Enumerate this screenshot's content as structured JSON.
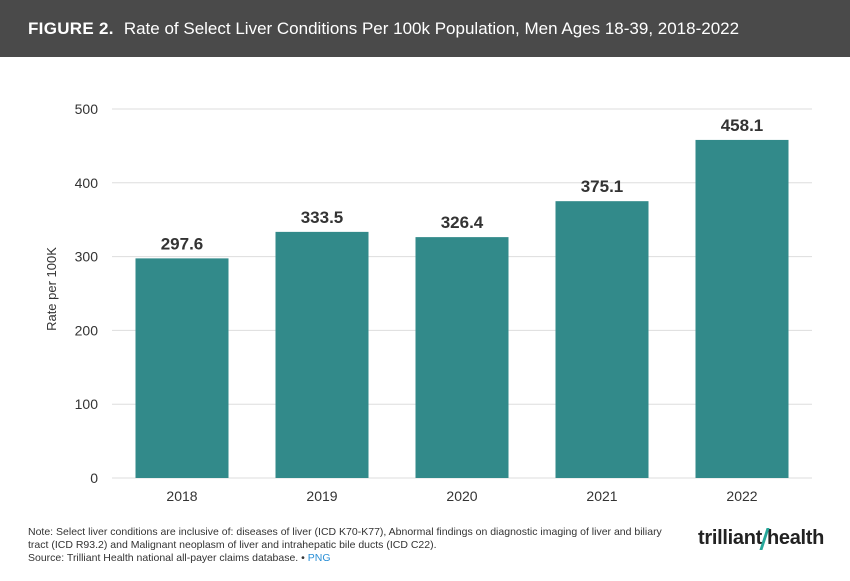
{
  "header": {
    "figure_label": "FIGURE 2.",
    "title": "Rate of Select Liver Conditions Per 100k Population, Men Ages 18-39, 2018-2022"
  },
  "chart_data": {
    "type": "bar",
    "title": "Rate of Select Liver Conditions Per 100k Population, Men Ages 18-39, 2018-2022",
    "categories": [
      "2018",
      "2019",
      "2020",
      "2021",
      "2022"
    ],
    "values": [
      297.6,
      333.5,
      326.4,
      375.1,
      458.1
    ],
    "data_labels": [
      "297.6",
      "333.5",
      "326.4",
      "375.1",
      "458.1"
    ],
    "xlabel": "",
    "ylabel": "Rate per 100K",
    "ylim": [
      0,
      500
    ],
    "yticks": [
      0,
      100,
      200,
      300,
      400,
      500
    ],
    "grid": true,
    "bar_color": "#328a8a",
    "grid_color": "#dddddd"
  },
  "footer": {
    "note": "Note: Select liver conditions are inclusive of: diseases of liver (ICD K70-K77), Abnormal findings on diagnostic imaging of liver and biliary tract (ICD R93.2) and Malignant neoplasm of liver and intrahepatic bile ducts (ICD C22).",
    "source": "Source: Trilliant Health national all-payer claims database.",
    "separator": "•",
    "png_link": "PNG"
  },
  "logo": {
    "left": "trilliant",
    "right": "health"
  }
}
